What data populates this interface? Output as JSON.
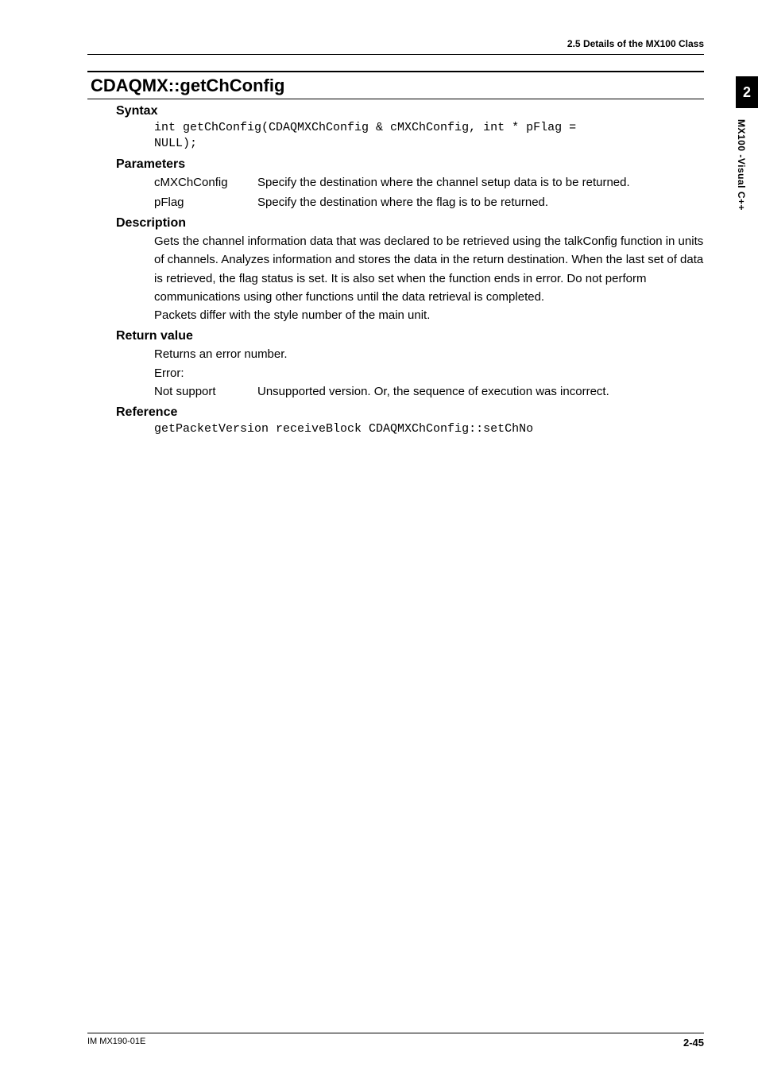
{
  "running_header": "2.5  Details of the MX100 Class",
  "class_title": "CDAQMX::getChConfig",
  "syntax": {
    "label": "Syntax",
    "code": "int getChConfig(CDAQMXChConfig & cMXChConfig, int * pFlag =\nNULL);"
  },
  "parameters": {
    "label": "Parameters",
    "rows": [
      {
        "name": "cMXChConfig",
        "desc": "Specify the destination where the channel setup data is to be returned."
      },
      {
        "name": "pFlag",
        "desc": "Specify the destination where the flag is to be returned."
      }
    ]
  },
  "description": {
    "label": "Description",
    "text": "Gets the channel information data that was declared to be retrieved using the talkConfig function in units of channels.  Analyzes information and stores the data in the return destination.  When the last set of data is retrieved, the flag status is set. It is also set when the function ends in error.  Do not perform communications using other functions until the data retrieval is completed.",
    "text2": "Packets differ with the style number of the main unit."
  },
  "return_value": {
    "label": "Return value",
    "line1": "Returns an error number.",
    "line2": "Error:",
    "row": {
      "name": "Not support",
      "desc": "Unsupported version.  Or, the sequence of execution was incorrect."
    }
  },
  "reference": {
    "label": "Reference",
    "code": "getPacketVersion receiveBlock CDAQMXChConfig::setChNo"
  },
  "side_tab": {
    "number": "2",
    "text": "MX100 -Visual C++"
  },
  "footer": {
    "left": "IM MX190-01E",
    "right": "2-45"
  }
}
